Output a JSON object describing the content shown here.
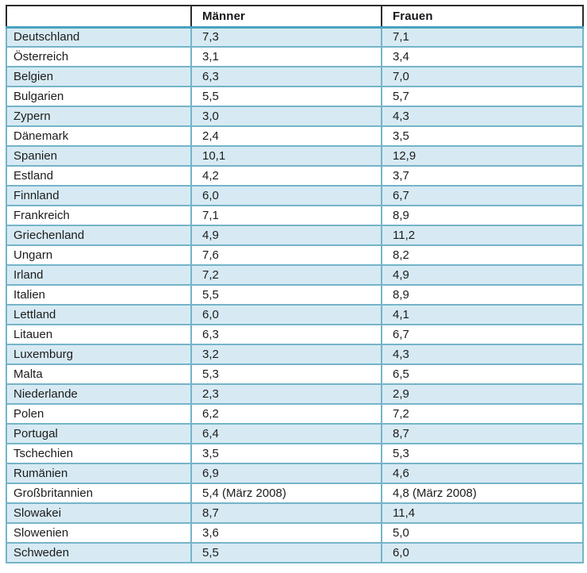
{
  "colors": {
    "body_border": "#74b4c9",
    "header_border": "#2a2a30",
    "header_divider": "#4aa2bf",
    "shaded_row_fill": "#d7eaf3",
    "text": "#1c1c1c"
  },
  "chart_data": {
    "type": "table",
    "title": "",
    "columns": [
      "",
      "Männer",
      "Frauen"
    ],
    "legend_position": "none",
    "shading_pattern": "odd rows (1st, 3rd, ...) light blue",
    "rows": [
      [
        "Deutschland",
        "7,3",
        "7,1"
      ],
      [
        "Österreich",
        "3,1",
        "3,4"
      ],
      [
        "Belgien",
        "6,3",
        "7,0"
      ],
      [
        "Bulgarien",
        "5,5",
        "5,7"
      ],
      [
        "Zypern",
        "3,0",
        "4,3"
      ],
      [
        "Dänemark",
        "2,4",
        "3,5"
      ],
      [
        "Spanien",
        "10,1",
        "12,9"
      ],
      [
        "Estland",
        "4,2",
        "3,7"
      ],
      [
        "Finnland",
        "6,0",
        "6,7"
      ],
      [
        "Frankreich",
        "7,1",
        "8,9"
      ],
      [
        "Griechenland",
        "4,9",
        "11,2"
      ],
      [
        "Ungarn",
        "7,6",
        "8,2"
      ],
      [
        "Irland",
        "7,2",
        "4,9"
      ],
      [
        "Italien",
        "5,5",
        "8,9"
      ],
      [
        "Lettland",
        "6,0",
        "4,1"
      ],
      [
        "Litauen",
        "6,3",
        "6,7"
      ],
      [
        "Luxemburg",
        "3,2",
        "4,3"
      ],
      [
        "Malta",
        "5,3",
        "6,5"
      ],
      [
        "Niederlande",
        "2,3",
        "2,9"
      ],
      [
        "Polen",
        "6,2",
        "7,2"
      ],
      [
        "Portugal",
        "6,4",
        "8,7"
      ],
      [
        "Tschechien",
        "3,5",
        "5,3"
      ],
      [
        "Rumänien",
        "6,9",
        "4,6"
      ],
      [
        "Großbritannien",
        "5,4 (März 2008)",
        "4,8 (März 2008)"
      ],
      [
        "Slowakei",
        "8,7",
        "11,4"
      ],
      [
        "Slowenien",
        "3,6",
        "5,0"
      ],
      [
        "Schweden",
        "5,5",
        "6,0"
      ]
    ]
  }
}
